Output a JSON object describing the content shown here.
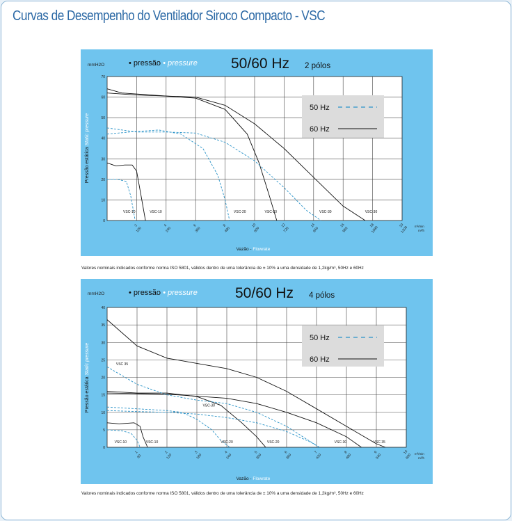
{
  "page": {
    "title": "Curvas de Desempenho do Ventilador Siroco Compacto - VSC"
  },
  "chart_data": [
    {
      "type": "line",
      "title": "50/60 Hz",
      "subtitle": "2 pólos",
      "yunit": "mmH2O",
      "legend_label_pt": "pressão",
      "legend_label_en": "pressure",
      "ylabel_pt": "Pressão estática",
      "ylabel_en": "Static pressure",
      "xlabel_pt": "Vazão",
      "xlabel_en": "Flowrate",
      "xunit_1": "m³/min",
      "xunit_2": "m³/h",
      "xlim": [
        0,
        20
      ],
      "ylim": [
        0,
        70
      ],
      "yticks": [
        0,
        10,
        20,
        30,
        40,
        50,
        60,
        70
      ],
      "xticks": [
        {
          "v": 2,
          "a": "2",
          "b": "120"
        },
        {
          "v": 4,
          "a": "4",
          "b": "240"
        },
        {
          "v": 6,
          "a": "6",
          "b": "360"
        },
        {
          "v": 8,
          "a": "8",
          "b": "480"
        },
        {
          "v": 10,
          "a": "10",
          "b": "600"
        },
        {
          "v": 12,
          "a": "12",
          "b": "720"
        },
        {
          "v": 14,
          "a": "14",
          "b": "840"
        },
        {
          "v": 16,
          "a": "16",
          "b": "960"
        },
        {
          "v": 18,
          "a": "18",
          "b": "1080"
        },
        {
          "v": 20,
          "a": "20",
          "b": "1200"
        }
      ],
      "grid": true,
      "legend_position": "top-right",
      "legend": [
        {
          "label": "50 Hz",
          "style": "dashed",
          "color": "#2a93c8"
        },
        {
          "label": "60 Hz",
          "style": "solid",
          "color": "#111111"
        }
      ],
      "series": [
        {
          "name": "VSC-10",
          "freq": "50 Hz",
          "points": [
            [
              0,
              20
            ],
            [
              0.7,
              20
            ],
            [
              1.3,
              19
            ],
            [
              1.6,
              12
            ],
            [
              1.9,
              0
            ]
          ]
        },
        {
          "name": "VSC-10",
          "freq": "60 Hz",
          "points": [
            [
              0,
              28
            ],
            [
              0.6,
              26.5
            ],
            [
              1.2,
              27
            ],
            [
              1.7,
              27
            ],
            [
              2.0,
              24
            ],
            [
              2.3,
              12
            ],
            [
              2.6,
              0
            ]
          ]
        },
        {
          "name": "VSC-20",
          "freq": "50 Hz",
          "points": [
            [
              0,
              42
            ],
            [
              1.5,
              43
            ],
            [
              3.5,
              44
            ],
            [
              5,
              42
            ],
            [
              6.5,
              35
            ],
            [
              7.5,
              22
            ],
            [
              8,
              10
            ],
            [
              8.3,
              0
            ]
          ]
        },
        {
          "name": "VSC-20",
          "freq": "60 Hz",
          "points": [
            [
              0,
              64
            ],
            [
              1,
              62
            ],
            [
              3,
              61
            ],
            [
              6,
              59.5
            ],
            [
              8,
              54
            ],
            [
              9.5,
              42
            ],
            [
              10.3,
              28
            ],
            [
              11,
              12
            ],
            [
              11.5,
              0
            ]
          ]
        },
        {
          "name": "VSC-30",
          "freq": "50 Hz",
          "points": [
            [
              0,
              45
            ],
            [
              2,
              43
            ],
            [
              4,
              43
            ],
            [
              6,
              42.5
            ],
            [
              8,
              38
            ],
            [
              10,
              29
            ],
            [
              12,
              16
            ],
            [
              13.5,
              5
            ],
            [
              14.5,
              0
            ]
          ]
        },
        {
          "name": "VSC-30",
          "freq": "60 Hz",
          "points": [
            [
              0,
              62
            ],
            [
              2,
              61
            ],
            [
              6,
              60
            ],
            [
              8,
              56
            ],
            [
              10,
              47
            ],
            [
              12,
              35
            ],
            [
              14,
              21
            ],
            [
              16,
              7
            ],
            [
              17.5,
              0
            ]
          ]
        }
      ],
      "curve_labels": [
        {
          "text": "VSC-10",
          "x": 1.5
        },
        {
          "text": "VSC-10",
          "x": 3.3
        },
        {
          "text": "VSC-20",
          "x": 9.0
        },
        {
          "text": "VSC-20",
          "x": 11.1
        },
        {
          "text": "VSC-30",
          "x": 14.8
        },
        {
          "text": "VSC-30",
          "x": 17.9
        }
      ],
      "footnote": "Valores nominais indicados conforme norma ISO 5801, válidos dentro de uma tolerância de ± 10% a uma densidade de 1,2kg/m³, 50Hz e 60Hz"
    },
    {
      "type": "line",
      "title": "50/60 Hz",
      "subtitle": "4 pólos",
      "yunit": "mmH2O",
      "legend_label_pt": "pressão",
      "legend_label_en": "pressure",
      "ylabel_pt": "Pressão estática",
      "ylabel_en": "Static pressure",
      "xlabel_pt": "Vazão",
      "xlabel_en": "Flowrate",
      "xunit_1": "m³/min",
      "xunit_2": "m³/h",
      "xlim": [
        0,
        10
      ],
      "ylim": [
        0,
        40
      ],
      "yticks": [
        0,
        5,
        10,
        15,
        20,
        25,
        30,
        35,
        40
      ],
      "xticks": [
        {
          "v": 1,
          "a": "1",
          "b": "60"
        },
        {
          "v": 2,
          "a": "2",
          "b": "120"
        },
        {
          "v": 3,
          "a": "3",
          "b": "180"
        },
        {
          "v": 4,
          "a": "4",
          "b": "240"
        },
        {
          "v": 5,
          "a": "5",
          "b": "300"
        },
        {
          "v": 6,
          "a": "6",
          "b": "360"
        },
        {
          "v": 7,
          "a": "7",
          "b": "420"
        },
        {
          "v": 8,
          "a": "8",
          "b": "480"
        },
        {
          "v": 9,
          "a": "9",
          "b": "540"
        },
        {
          "v": 10,
          "a": "10",
          "b": "600"
        }
      ],
      "grid": true,
      "legend_position": "top-right",
      "legend": [
        {
          "label": "50 Hz",
          "style": "dashed",
          "color": "#2a93c8"
        },
        {
          "label": "60 Hz",
          "style": "solid",
          "color": "#111111"
        }
      ],
      "series": [
        {
          "name": "VSC-10",
          "freq": "50 Hz",
          "points": [
            [
              0,
              5
            ],
            [
              0.5,
              4.7
            ],
            [
              0.8,
              4
            ],
            [
              1,
              2
            ],
            [
              1.1,
              0
            ]
          ]
        },
        {
          "name": "VSC-10",
          "freq": "60 Hz",
          "points": [
            [
              0,
              7
            ],
            [
              0.4,
              6.7
            ],
            [
              0.9,
              7
            ],
            [
              1.1,
              6
            ],
            [
              1.2,
              3
            ],
            [
              1.35,
              0
            ]
          ]
        },
        {
          "name": "VSC-20",
          "freq": "50 Hz",
          "points": [
            [
              0,
              11.5
            ],
            [
              1,
              11
            ],
            [
              2,
              10.5
            ],
            [
              2.5,
              10
            ],
            [
              3,
              8
            ],
            [
              3.5,
              5
            ],
            [
              3.8,
              2
            ],
            [
              4.1,
              0
            ]
          ]
        },
        {
          "name": "VSC-20",
          "freq": "60 Hz",
          "points": [
            [
              0,
              16
            ],
            [
              1,
              15.5
            ],
            [
              2,
              15.5
            ],
            [
              3,
              14.5
            ],
            [
              3.8,
              12
            ],
            [
              4.5,
              7
            ],
            [
              5,
              3
            ],
            [
              5.3,
              0
            ]
          ]
        },
        {
          "name": "VSC-30",
          "freq": "50 Hz",
          "points": [
            [
              0,
              10.5
            ],
            [
              1,
              10.2
            ],
            [
              2,
              10
            ],
            [
              3,
              9.5
            ],
            [
              4,
              8.5
            ],
            [
              5,
              7
            ],
            [
              6,
              4.5
            ],
            [
              6.8,
              1.5
            ],
            [
              7.1,
              0
            ]
          ]
        },
        {
          "name": "VSC-30",
          "freq": "60 Hz",
          "points": [
            [
              0,
              15.5
            ],
            [
              2,
              15.2
            ],
            [
              4,
              14
            ],
            [
              5,
              12.5
            ],
            [
              6,
              10
            ],
            [
              7,
              7
            ],
            [
              8,
              3
            ],
            [
              8.5,
              0
            ]
          ]
        },
        {
          "name": "VSC 35",
          "freq": "50 Hz",
          "points": [
            [
              0,
              23
            ],
            [
              1,
              18
            ],
            [
              2,
              15
            ],
            [
              3,
              13.5
            ],
            [
              4,
              12.5
            ],
            [
              5,
              10
            ],
            [
              6,
              6
            ],
            [
              7,
              0.5
            ]
          ]
        },
        {
          "name": "VSC 35",
          "freq": "60 Hz",
          "points": [
            [
              0,
              36.5
            ],
            [
              1,
              29
            ],
            [
              2,
              25.5
            ],
            [
              3,
              24
            ],
            [
              4,
              22.5
            ],
            [
              5,
              20
            ],
            [
              6,
              16
            ],
            [
              7,
              11
            ],
            [
              8,
              6
            ],
            [
              9,
              1
            ],
            [
              9.3,
              0
            ]
          ]
        }
      ],
      "curve_labels": [
        {
          "text": "VSC 35",
          "x": 0.5,
          "y": 23.5
        },
        {
          "text": "VSC-30",
          "x": 3.4,
          "y": 11.6
        },
        {
          "text": "VSC-10",
          "x": 0.45,
          "y": 1.2
        },
        {
          "text": "VSC-10",
          "x": 1.5,
          "y": 1.2
        },
        {
          "text": "VSC-20",
          "x": 4.0,
          "y": 1.2
        },
        {
          "text": "VSC-20",
          "x": 5.55,
          "y": 1.2
        },
        {
          "text": "VSC-30",
          "x": 7.8,
          "y": 1.2
        },
        {
          "text": "VSC 35",
          "x": 9.1,
          "y": 1.2
        }
      ],
      "footnote": "Valores nominais indicados conforme norma ISO 5801, válidos dentro de uma tolerância de ± 10% a uma densidade de 1,2kg/m³, 50Hz e 60Hz"
    }
  ]
}
